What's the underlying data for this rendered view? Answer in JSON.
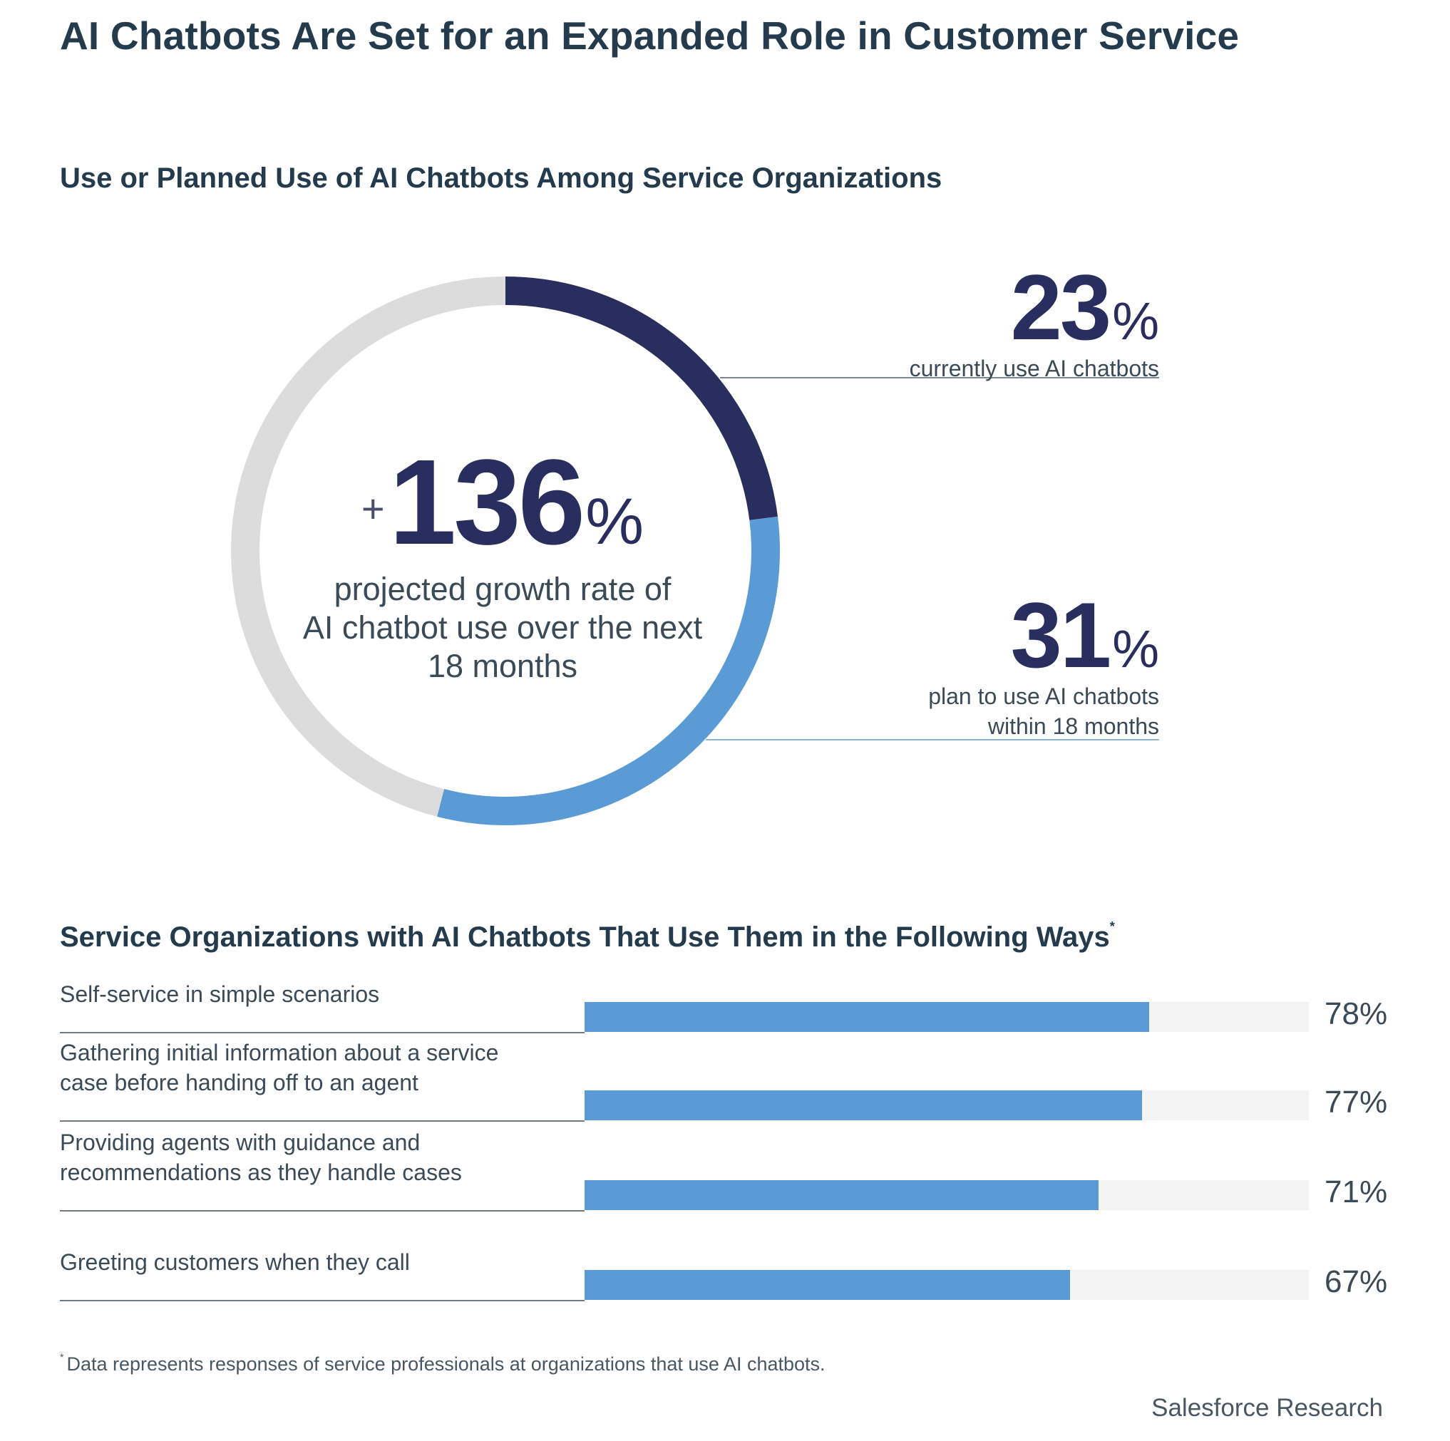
{
  "title": "AI Chatbots Are Set for an Expanded Role in Customer Service",
  "colors": {
    "current": "#2a2e5e",
    "planned": "#5b9bd5",
    "remainder": "#dcdcdc",
    "bar_track": "#f4f4f4"
  },
  "chart_data": [
    {
      "type": "pie",
      "title": "Use or Planned Use of AI Chatbots Among Service Organizations",
      "slices": [
        {
          "name": "currently use AI chatbots",
          "value": 23
        },
        {
          "name": "plan to use AI chatbots within 18 months",
          "value": 31
        }
      ],
      "center": {
        "prefix": "+",
        "value": "136",
        "unit": "%",
        "label": "projected growth rate of AI chatbot use over the next 18 months",
        "label_lines": [
          "projected growth rate of",
          "AI chatbot use over the next",
          "18 months"
        ]
      },
      "stats": [
        {
          "value": "23",
          "unit": "%",
          "lines": [
            "currently use AI chatbots"
          ]
        },
        {
          "value": "31",
          "unit": "%",
          "lines": [
            "plan to use AI chatbots",
            "within 18 months"
          ]
        }
      ]
    },
    {
      "type": "bar",
      "title": "Service Organizations with AI Chatbots That Use Them in the Following Ways",
      "title_marker": "*",
      "orientation": "horizontal",
      "xlim": [
        0,
        100
      ],
      "rows": [
        {
          "lines": [
            "Self-service in simple scenarios"
          ],
          "value": 78,
          "label": "78%"
        },
        {
          "lines": [
            "Gathering initial information about a service",
            "case before handing off to an agent"
          ],
          "value": 77,
          "label": "77%"
        },
        {
          "lines": [
            "Providing agents with guidance and",
            "recommendations as they handle cases"
          ],
          "value": 71,
          "label": "71%"
        },
        {
          "lines": [
            "Greeting customers when they call"
          ],
          "value": 67,
          "label": "67%"
        }
      ]
    }
  ],
  "footnote": {
    "marker": "*",
    "text": "Data represents responses of service professionals at organizations that use AI chatbots."
  },
  "source": "Salesforce Research"
}
